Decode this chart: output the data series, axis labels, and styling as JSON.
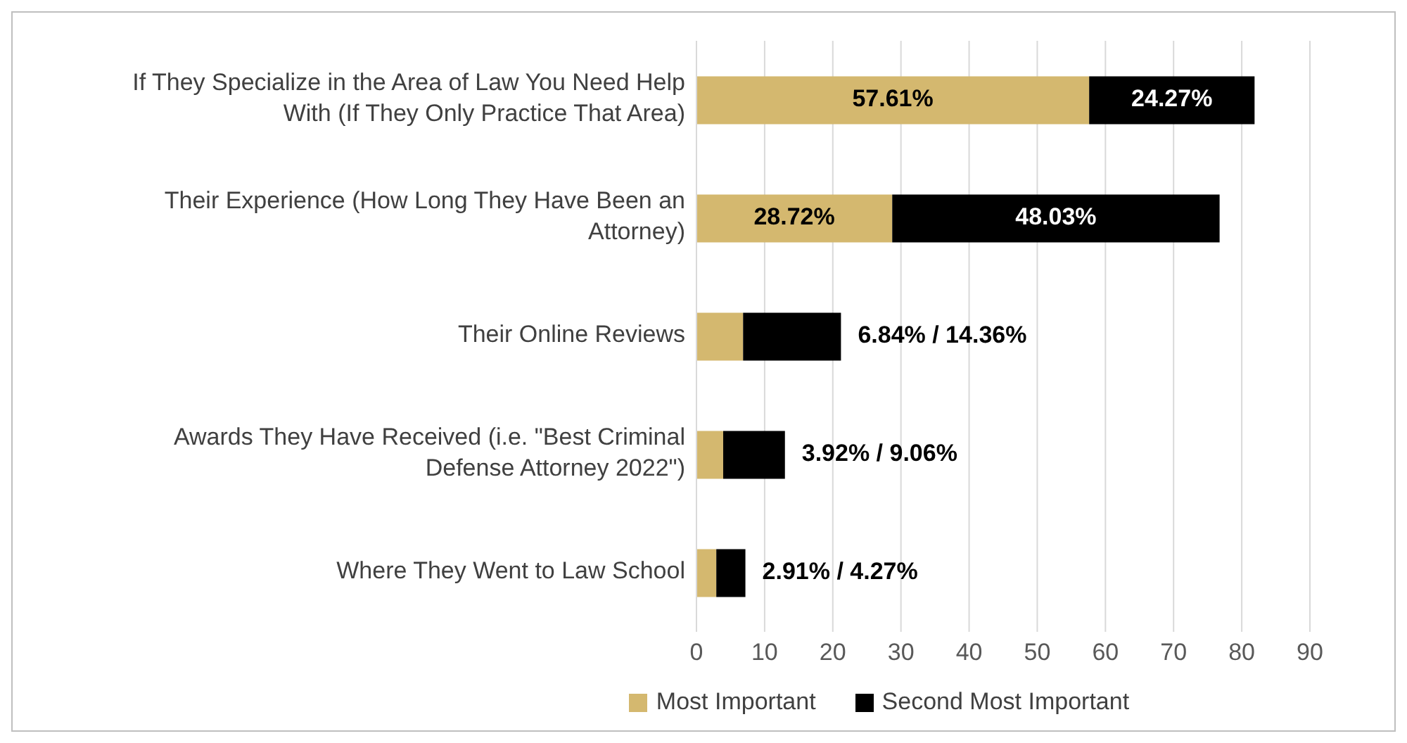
{
  "chart_data": {
    "type": "bar",
    "orientation": "horizontal",
    "stacked": true,
    "categories": [
      "If They Specialize in the Area of Law You Need Help With (If They Only Practice That Area)",
      "Their Experience (How Long They Have Been an Attorney)",
      "Their Online Reviews",
      "Awards They Have Received (i.e. \"Best Criminal Defense Attorney 2022\")",
      "Where They Went to Law School"
    ],
    "series": [
      {
        "name": "Most Important",
        "color": "#d4b86f",
        "values": [
          57.61,
          28.72,
          6.84,
          3.92,
          2.91
        ],
        "value_labels": [
          "57.61%",
          "28.72%",
          null,
          null,
          null
        ]
      },
      {
        "name": "Second Most Important",
        "color": "#000000",
        "values": [
          24.27,
          48.03,
          14.36,
          9.06,
          4.27
        ],
        "value_labels": [
          "24.27%",
          "48.03%",
          "6.84% / 14.36%",
          "3.92% / 9.06%",
          "2.91% / 4.27%"
        ]
      }
    ],
    "xlim": [
      0,
      90
    ],
    "xticks": [
      0,
      10,
      20,
      30,
      40,
      50,
      60,
      70,
      80,
      90
    ],
    "grid": "x",
    "legend": "bottom"
  }
}
